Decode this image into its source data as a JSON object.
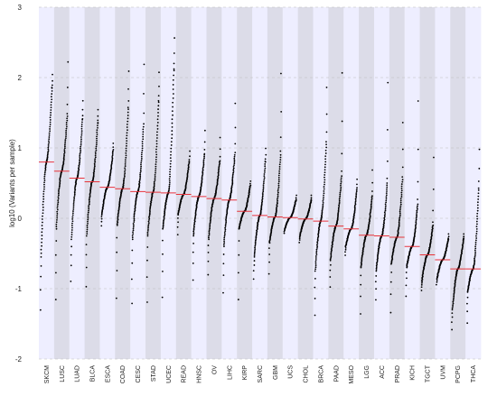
{
  "chart_data": {
    "type": "scatter",
    "title": "",
    "xlabel": "",
    "ylabel": "log10 (Variants per sample)",
    "ylim": [
      -2,
      3
    ],
    "yticks": [
      -2,
      -1,
      0,
      1,
      2,
      3
    ],
    "grid": "horizontal dashed",
    "legend": "none",
    "colors": {
      "band_light": "#eeeeff",
      "band_dark": "#dcdce8",
      "points": "#000000",
      "median_line": "#e8333a",
      "grid": "#bbbbbb"
    },
    "categories": [
      "SKCM",
      "LUSC",
      "LUAD",
      "BLCA",
      "ESCA",
      "COAD",
      "CESC",
      "STAD",
      "UCEC",
      "READ",
      "HNSC",
      "OV",
      "LIHC",
      "KIRP",
      "SARC",
      "GBM",
      "UCS",
      "CHOL",
      "BRCA",
      "PAAD",
      "MESO",
      "LGG",
      "ACC",
      "PRAD",
      "KICH",
      "TGCT",
      "UVM",
      "PCPG",
      "THCA"
    ],
    "distributions": [
      {
        "name": "SKCM",
        "median": 0.8,
        "min": -1.75,
        "max": 2.1,
        "q05": -0.55,
        "q95": 1.85
      },
      {
        "name": "LUSC",
        "median": 0.67,
        "min": -1.75,
        "max": 2.45,
        "q05": -0.15,
        "q95": 1.45
      },
      {
        "name": "LUAD",
        "median": 0.57,
        "min": -1.25,
        "max": 1.75,
        "q05": -0.3,
        "q95": 1.4
      },
      {
        "name": "BLCA",
        "median": 0.52,
        "min": -1.4,
        "max": 1.6,
        "q05": -0.25,
        "q95": 1.35
      },
      {
        "name": "ESCA",
        "median": 0.44,
        "min": -0.2,
        "max": 1.1,
        "q05": 0.05,
        "q95": 0.95
      },
      {
        "name": "COAD",
        "median": 0.42,
        "min": -1.75,
        "max": 2.25,
        "q05": -0.1,
        "q95": 1.55
      },
      {
        "name": "CESC",
        "median": 0.38,
        "min": -1.75,
        "max": 2.45,
        "q05": -0.3,
        "q95": 1.3
      },
      {
        "name": "STAD",
        "median": 0.37,
        "min": -1.75,
        "max": 2.2,
        "q05": -0.25,
        "q95": 1.65
      },
      {
        "name": "UCEC",
        "median": 0.36,
        "min": -1.7,
        "max": 2.7,
        "q05": -0.15,
        "q95": 2.1
      },
      {
        "name": "READ",
        "median": 0.34,
        "min": -0.4,
        "max": 1.0,
        "q05": 0.05,
        "q95": 0.8
      },
      {
        "name": "HNSC",
        "median": 0.31,
        "min": -1.25,
        "max": 1.35,
        "q05": -0.25,
        "q95": 0.9
      },
      {
        "name": "OV",
        "median": 0.28,
        "min": -1.1,
        "max": 1.25,
        "q05": -0.3,
        "q95": 0.8
      },
      {
        "name": "LIHC",
        "median": 0.26,
        "min": -1.45,
        "max": 1.85,
        "q05": -0.4,
        "q95": 0.9
      },
      {
        "name": "KIRP",
        "median": 0.1,
        "min": -1.75,
        "max": 0.55,
        "q05": -0.15,
        "q95": 0.45
      },
      {
        "name": "SARC",
        "median": 0.04,
        "min": -1.05,
        "max": 1.05,
        "q05": -0.55,
        "q95": 0.8
      },
      {
        "name": "GBM",
        "median": 0.02,
        "min": -1.05,
        "max": 2.4,
        "q05": -0.35,
        "q95": 0.9
      },
      {
        "name": "UCS",
        "median": 0.01,
        "min": -0.25,
        "max": 0.35,
        "q05": -0.15,
        "q95": 0.25
      },
      {
        "name": "CHOL",
        "median": -0.01,
        "min": -0.4,
        "max": 0.35,
        "q05": -0.25,
        "q95": 0.25
      },
      {
        "name": "BRCA",
        "median": -0.04,
        "min": -1.75,
        "max": 2.1,
        "q05": -0.75,
        "q95": 1.05
      },
      {
        "name": "PAAD",
        "median": -0.11,
        "min": -1.2,
        "max": 2.5,
        "q05": -0.6,
        "q95": 0.6
      },
      {
        "name": "MESO",
        "median": -0.15,
        "min": -0.6,
        "max": 0.6,
        "q05": -0.4,
        "q95": 0.4
      },
      {
        "name": "LGG",
        "median": -0.24,
        "min": -1.75,
        "max": 0.8,
        "q05": -0.7,
        "q95": 0.3
      },
      {
        "name": "ACC",
        "median": -0.25,
        "min": -1.4,
        "max": 2.35,
        "q05": -0.75,
        "q95": 0.5
      },
      {
        "name": "PRAD",
        "median": -0.27,
        "min": -1.75,
        "max": 1.6,
        "q05": -0.65,
        "q95": 0.55
      },
      {
        "name": "KICH",
        "median": -0.4,
        "min": -1.35,
        "max": 2.1,
        "q05": -0.7,
        "q95": 0.2
      },
      {
        "name": "TGCT",
        "median": -0.52,
        "min": -1.1,
        "max": 1.15,
        "q05": -0.9,
        "q95": -0.1
      },
      {
        "name": "UVM",
        "median": -0.59,
        "min": -1.0,
        "max": -0.2,
        "q05": -0.85,
        "q95": -0.3
      },
      {
        "name": "PCPG",
        "median": -0.72,
        "min": -1.75,
        "max": -0.2,
        "q05": -1.3,
        "q95": -0.3
      },
      {
        "name": "THCA",
        "median": -0.72,
        "min": -1.75,
        "max": 1.15,
        "q05": -1.05,
        "q95": 0.4
      }
    ]
  }
}
